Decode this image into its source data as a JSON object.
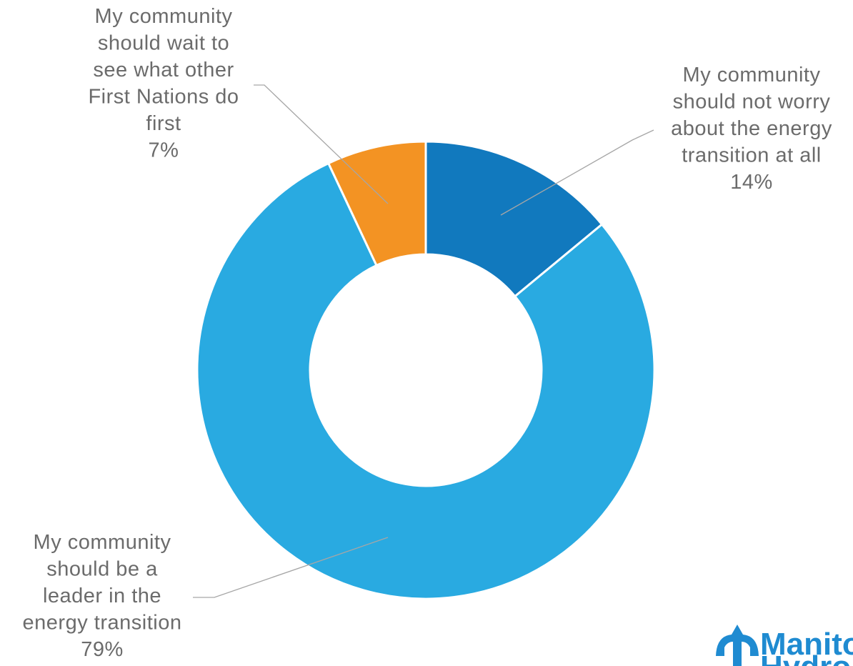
{
  "chart_data": {
    "type": "pie",
    "variant": "donut",
    "title": "",
    "categories": [
      "My community should not worry about the energy transition at all",
      "My community should be a leader in the energy transition",
      "My community should wait to see what other First Nations do first"
    ],
    "values": [
      14,
      79,
      7
    ],
    "value_unit": "%",
    "colors": [
      "#1179be",
      "#29aae1",
      "#f39323"
    ],
    "labels": [
      {
        "lines": [
          "My community",
          "should not worry",
          "about the energy",
          "transition at all"
        ],
        "value_text": "14%"
      },
      {
        "lines": [
          "My community",
          "should be a",
          "leader in the",
          "energy transition"
        ],
        "value_text": "79%"
      },
      {
        "lines": [
          "My community",
          "should wait to",
          "see what other",
          "First Nations do",
          "first"
        ],
        "value_text": "7%"
      }
    ],
    "legend": "none"
  },
  "logo": {
    "text_top": "Manito",
    "text_bottom": "Hydro",
    "color": "#1f8bd1",
    "icon": "tower-icon"
  }
}
